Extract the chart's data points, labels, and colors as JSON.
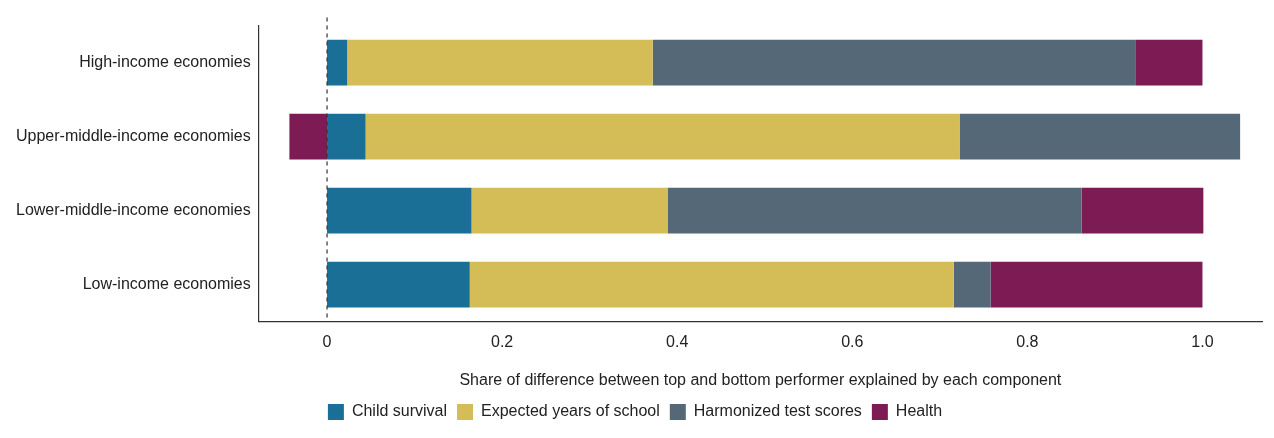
{
  "chart_data": {
    "type": "bar",
    "orientation": "horizontal",
    "stacked": true,
    "categories": [
      "High-income economies",
      "Upper-middle-income economies",
      "Lower-middle-income economies",
      "Low-income economies"
    ],
    "series": [
      {
        "name": "Child survival",
        "color": "#1a6f96",
        "values": [
          0.023,
          0.044,
          0.165,
          0.163
        ]
      },
      {
        "name": "Expected years of school",
        "color": "#d4bc56",
        "values": [
          0.349,
          0.679,
          0.224,
          0.553
        ]
      },
      {
        "name": "Harmonized test scores",
        "color": "#546878",
        "values": [
          0.552,
          0.32,
          0.473,
          0.042
        ]
      },
      {
        "name": "Health",
        "color": "#7d1b55",
        "values": [
          0.076,
          -0.043,
          0.139,
          0.242
        ]
      }
    ],
    "xlabel": "Share of difference between top and bottom performer explained by each component",
    "xlim": [
      -0.078,
      1.068
    ],
    "xticks": [
      0,
      0.2,
      0.4,
      0.6,
      0.8,
      {
        "value": 1,
        "label": "1.0"
      }
    ],
    "ref_lines": [
      {
        "axis": "x",
        "value": 0,
        "line_style": "dashed",
        "color": "#333333"
      }
    ],
    "grid": false,
    "legend": "bottom"
  }
}
